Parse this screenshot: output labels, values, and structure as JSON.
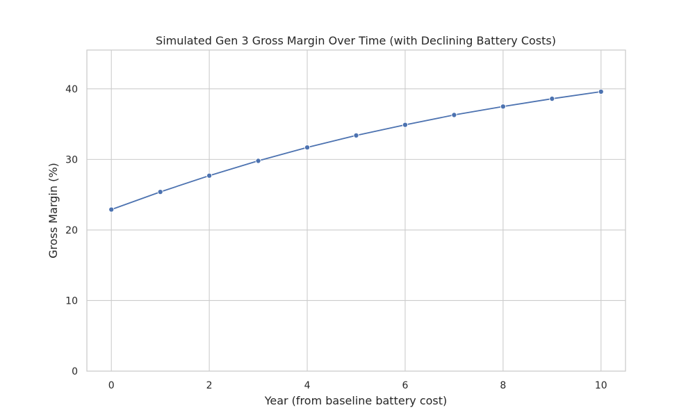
{
  "chart_data": {
    "type": "line",
    "title": "Simulated Gen 3 Gross Margin Over Time (with Declining Battery Costs)",
    "xlabel": "Year (from baseline battery cost)",
    "ylabel": "Gross Margin (%)",
    "xlim": [
      -0.5,
      10.5
    ],
    "ylim": [
      0,
      45.5
    ],
    "xticks": [
      0,
      2,
      4,
      6,
      8,
      10
    ],
    "yticks": [
      0,
      10,
      20,
      30,
      40
    ],
    "grid": true,
    "series": [
      {
        "color": "#4c72b0",
        "marker": "circle",
        "x": [
          0,
          1,
          2,
          3,
          4,
          5,
          6,
          7,
          8,
          9,
          10
        ],
        "y": [
          22.9,
          25.4,
          27.7,
          29.8,
          31.7,
          33.4,
          34.9,
          36.3,
          37.5,
          38.6,
          39.6
        ]
      }
    ]
  }
}
